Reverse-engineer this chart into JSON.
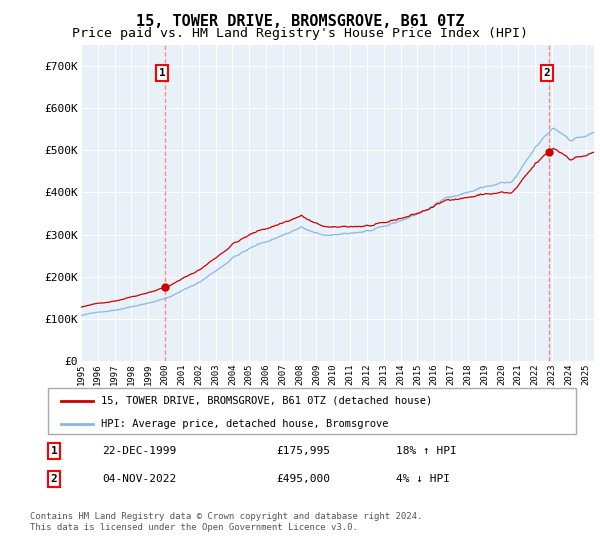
{
  "title": "15, TOWER DRIVE, BROMSGROVE, B61 0TZ",
  "subtitle": "Price paid vs. HM Land Registry's House Price Index (HPI)",
  "yticks": [
    0,
    100000,
    200000,
    300000,
    400000,
    500000,
    600000,
    700000
  ],
  "ytick_labels": [
    "£0",
    "£100K",
    "£200K",
    "£300K",
    "£400K",
    "£500K",
    "£600K",
    "£700K"
  ],
  "ylim": [
    0,
    750000
  ],
  "xlim_start": 1995.0,
  "xlim_end": 2025.5,
  "xtick_years": [
    1995,
    1996,
    1997,
    1998,
    1999,
    2000,
    2001,
    2002,
    2003,
    2004,
    2005,
    2006,
    2007,
    2008,
    2009,
    2010,
    2011,
    2012,
    2013,
    2014,
    2015,
    2016,
    2017,
    2018,
    2019,
    2020,
    2021,
    2022,
    2023,
    2024,
    2025
  ],
  "bg_color": "#e8f0f8",
  "grid_color": "#ffffff",
  "line1_color": "#cc0000",
  "line2_color": "#88b8e0",
  "sale1_date": 1999.97,
  "sale1_price": 175995,
  "sale2_date": 2022.84,
  "sale2_price": 495000,
  "legend_label1": "15, TOWER DRIVE, BROMSGROVE, B61 0TZ (detached house)",
  "legend_label2": "HPI: Average price, detached house, Bromsgrove",
  "annotation1_label": "1",
  "annotation2_label": "2",
  "table_row1": [
    "1",
    "22-DEC-1999",
    "£175,995",
    "18% ↑ HPI"
  ],
  "table_row2": [
    "2",
    "04-NOV-2022",
    "£495,000",
    "4% ↓ HPI"
  ],
  "footnote": "Contains HM Land Registry data © Crown copyright and database right 2024.\nThis data is licensed under the Open Government Licence v3.0.",
  "title_fontsize": 11,
  "subtitle_fontsize": 9.5
}
